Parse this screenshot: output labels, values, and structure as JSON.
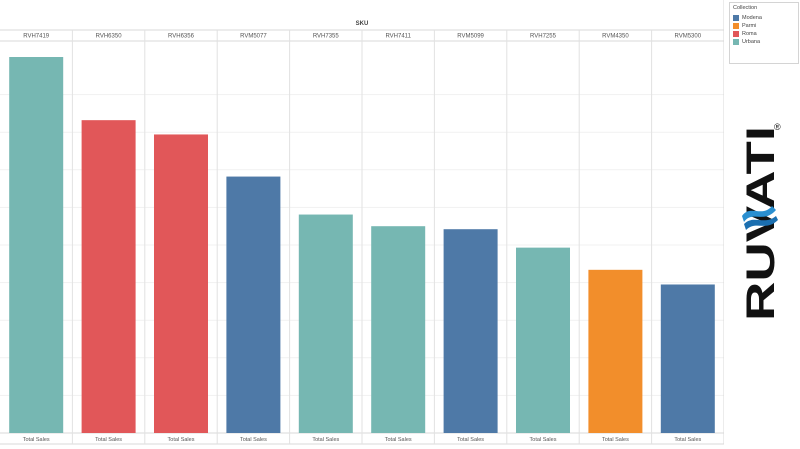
{
  "colors": {
    "Modena": "#4e79a7",
    "Parmi": "#f28e2b",
    "Roma": "#e15759",
    "Urbana": "#76b7b2"
  },
  "legend": {
    "title": "Collection",
    "items": [
      {
        "label": "Modena",
        "color": "#4e79a7"
      },
      {
        "label": "Parmi",
        "color": "#f28e2b"
      },
      {
        "label": "Roma",
        "color": "#e15759"
      },
      {
        "label": "Urbana",
        "color": "#76b7b2"
      }
    ]
  },
  "logo": {
    "text": "RUVATI",
    "mark": "®",
    "icon": "water-wave-icon"
  },
  "chart_data": {
    "type": "bar",
    "title": "SKU",
    "categories": [
      "RVH7419",
      "RVH6350",
      "RVH6356",
      "RVM5077",
      "RVH7355",
      "RVH7411",
      "RVM5099",
      "RVH7255",
      "RVM4350",
      "RVM5300"
    ],
    "collections": [
      "Urbana",
      "Roma",
      "Roma",
      "Modena",
      "Urbana",
      "Urbana",
      "Modena",
      "Urbana",
      "Parmi",
      "Modena"
    ],
    "values": [
      100,
      83.2,
      79.4,
      68.2,
      58.1,
      55.0,
      54.2,
      49.3,
      43.4,
      39.5
    ],
    "bottom_label": "Total Sales",
    "ylim": [
      0,
      100
    ],
    "grid": true,
    "legend_position": "top-right"
  }
}
